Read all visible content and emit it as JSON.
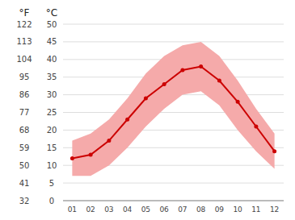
{
  "chart_data": {
    "type": "line",
    "categories": [
      "01",
      "02",
      "03",
      "04",
      "05",
      "06",
      "07",
      "08",
      "09",
      "10",
      "11",
      "12"
    ],
    "series": [
      {
        "type": "band",
        "color": "#f5aaaa",
        "high": [
          17,
          19,
          23,
          29,
          36,
          41,
          44,
          45,
          41,
          34,
          26,
          19
        ],
        "low": [
          7,
          7,
          10,
          15,
          21,
          26,
          30,
          31,
          27,
          20,
          14,
          9
        ]
      },
      {
        "type": "line",
        "color": "#cc0000",
        "marker": "circle",
        "values": [
          12,
          13,
          17,
          23,
          29,
          33,
          37,
          38,
          34,
          28,
          21,
          14
        ]
      }
    ],
    "ylabel": "°C",
    "y2label": "°F",
    "ylim": [
      0,
      50
    ],
    "yticks": [
      0,
      5,
      10,
      15,
      20,
      25,
      30,
      35,
      40,
      45,
      50
    ],
    "y2lim": [
      32,
      122
    ],
    "y2ticks": [
      32,
      41,
      50,
      59,
      68,
      77,
      86,
      95,
      104,
      113,
      122
    ],
    "grid": true
  }
}
